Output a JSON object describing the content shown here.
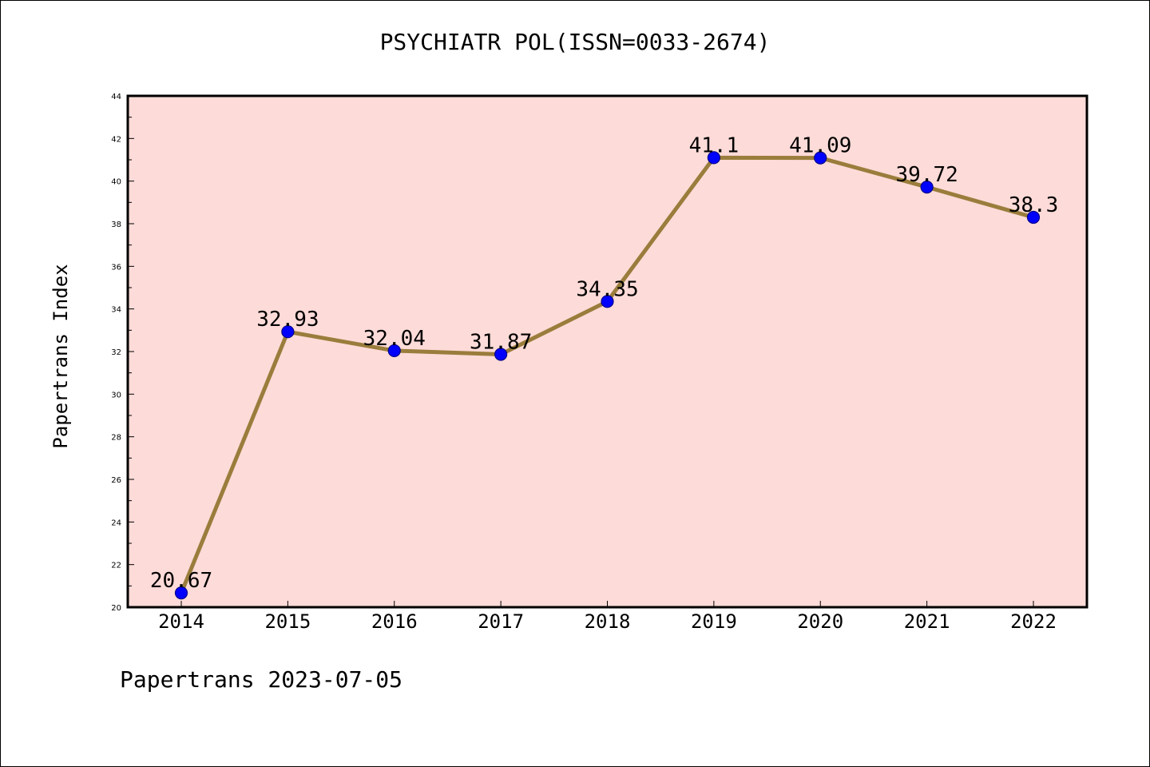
{
  "chart_data": {
    "type": "line",
    "title": "PSYCHIATR POL(ISSN=0033-2674)",
    "xlabel": "",
    "ylabel": "Papertrans Index",
    "categories": [
      "2014",
      "2015",
      "2016",
      "2017",
      "2018",
      "2019",
      "2020",
      "2021",
      "2022"
    ],
    "series": [
      {
        "values": [
          20.67,
          32.93,
          32.04,
          31.87,
          34.35,
          41.1,
          41.09,
          39.72,
          38.3
        ],
        "labels": [
          "20.67",
          "32.93",
          "32.04",
          "31.87",
          "34.35",
          "41.1",
          "41.09",
          "39.72",
          "38.3"
        ]
      }
    ],
    "ylim": [
      20,
      44
    ],
    "yticks": [
      "20",
      "22",
      "24",
      "26",
      "28",
      "30",
      "32",
      "34",
      "36",
      "38",
      "40",
      "42",
      "44"
    ],
    "grid": false,
    "colors": {
      "plot_background": "#fddbd8",
      "line": "#9a7d3c",
      "marker_fill": "#0000ff",
      "marker_edge": "#00008b"
    }
  },
  "footer": "Papertrans 2023-07-05"
}
